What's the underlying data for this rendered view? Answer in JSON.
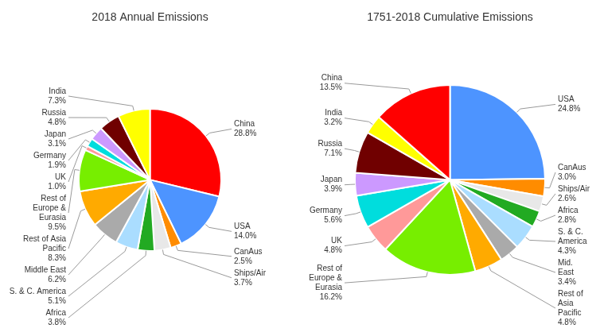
{
  "chart_data": [
    {
      "type": "pie",
      "title": "2018 Annual Emissions",
      "categories": [
        "China",
        "USA",
        "CanAus",
        "Ships/Air",
        "Africa",
        "S. & C. America",
        "Middle East",
        "Rest of Asia\nPacific",
        "Rest of\nEurope &\nEurasia",
        "UK",
        "Germany",
        "Japan",
        "Russia",
        "India"
      ],
      "values": [
        28.8,
        14.0,
        2.5,
        3.7,
        3.8,
        5.1,
        6.2,
        8.3,
        9.5,
        1.0,
        1.9,
        3.1,
        4.8,
        7.3
      ],
      "value_labels": [
        "28.8%",
        "14.0%",
        "2.5%",
        "3.7%",
        "3.8%",
        "5.1%",
        "6.2%",
        "8.3%",
        "9.5%",
        "1.0%",
        "1.9%",
        "3.1%",
        "4.8%",
        "7.3%"
      ],
      "colors": [
        "#ff0000",
        "#4d94ff",
        "#ff8c00",
        "#e8e8e8",
        "#22aa22",
        "#aaddff",
        "#aaaaaa",
        "#ffaa00",
        "#77ee00",
        "#ff9999",
        "#00dddd",
        "#cc99ff",
        "#700000",
        "#ffff00"
      ],
      "data_labels": true
    },
    {
      "type": "pie",
      "title": "1751-2018 Cumulative Emissions",
      "categories": [
        "USA",
        "CanAus",
        "Ships/Air",
        "Africa",
        "S. & C.\nAmerica",
        "Mid.\nEast",
        "Rest of\nAsia\nPacific",
        "Rest of\nEurope &\nEurasia",
        "UK",
        "Germany",
        "Japan",
        "Russia",
        "India",
        "China"
      ],
      "values": [
        24.8,
        3.0,
        2.6,
        2.8,
        4.3,
        3.4,
        4.8,
        16.2,
        4.8,
        5.6,
        3.9,
        7.1,
        3.2,
        13.5
      ],
      "value_labels": [
        "24.8%",
        "3.0%",
        "2.6%",
        "2.8%",
        "4.3%",
        "3.4%",
        "4.8%",
        "16.2%",
        "4.8%",
        "5.6%",
        "3.9%",
        "7.1%",
        "3.2%",
        "13.5%"
      ],
      "colors": [
        "#4d94ff",
        "#ff8c00",
        "#e8e8e8",
        "#22aa22",
        "#aaddff",
        "#aaaaaa",
        "#ffaa00",
        "#77ee00",
        "#ff9999",
        "#00dddd",
        "#cc99ff",
        "#700000",
        "#ffff00",
        "#ff0000"
      ],
      "data_labels": true
    }
  ]
}
